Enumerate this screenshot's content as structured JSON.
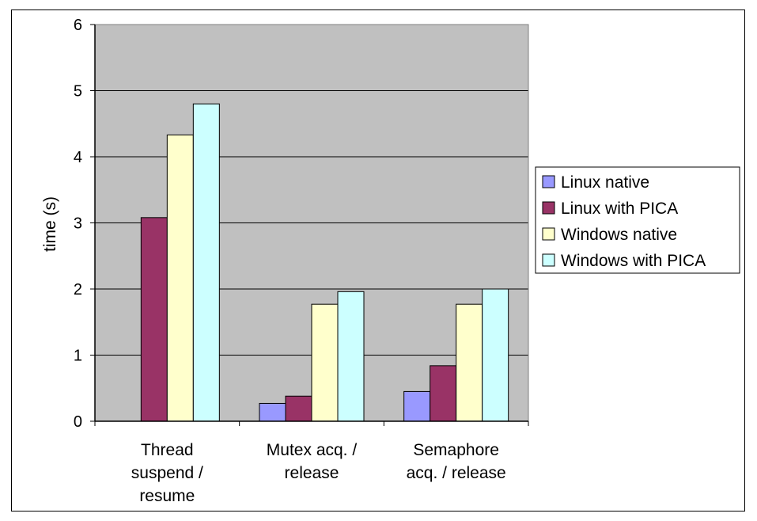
{
  "chart_data": {
    "type": "bar",
    "title": "",
    "xlabel": "",
    "ylabel": "time (s)",
    "ylim": [
      0,
      6
    ],
    "yticks": [
      0,
      1,
      2,
      3,
      4,
      5,
      6
    ],
    "grid": true,
    "legend_position": "right",
    "categories": [
      [
        "Thread",
        "suspend /",
        "resume"
      ],
      [
        "Mutex acq. /",
        "release"
      ],
      [
        "Semaphore",
        "acq. / release"
      ]
    ],
    "series": [
      {
        "name": "Linux native",
        "color": "#9999ff",
        "values": [
          0,
          0.27,
          0.45
        ]
      },
      {
        "name": "Linux with PICA",
        "color": "#993366",
        "values": [
          3.08,
          0.38,
          0.84
        ]
      },
      {
        "name": "Windows native",
        "color": "#ffffcc",
        "values": [
          4.33,
          1.77,
          1.77
        ]
      },
      {
        "name": "Windows with PICA",
        "color": "#ccffff",
        "values": [
          4.8,
          1.96,
          2.0
        ]
      }
    ],
    "colors": {
      "plot_background": "#c0c0c0",
      "gridline": "#000000"
    }
  }
}
